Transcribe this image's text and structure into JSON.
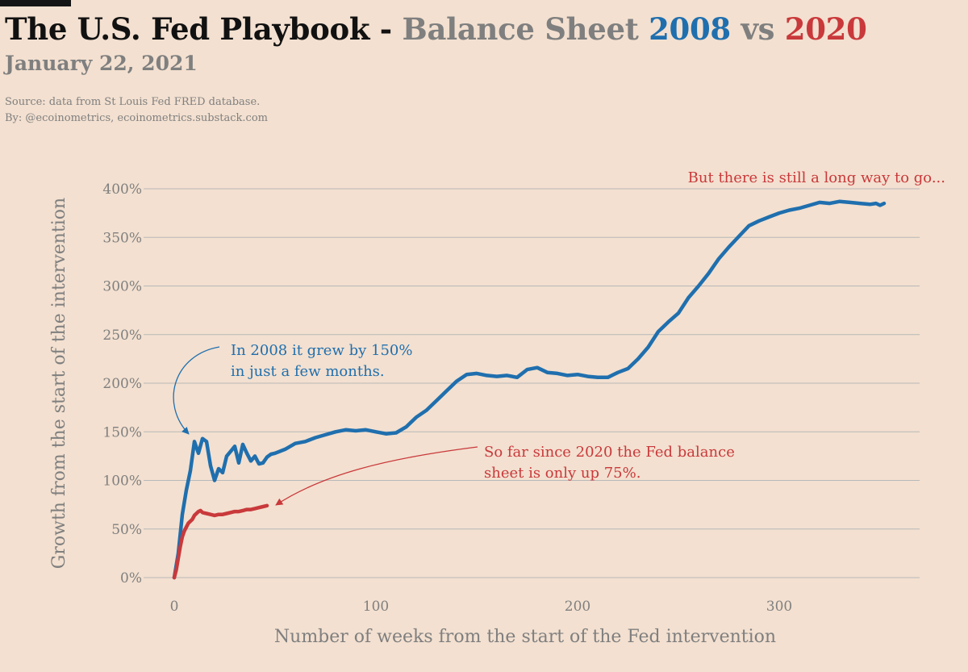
{
  "header": {
    "title_main": "The U.S. Fed Playbook -",
    "title_sub": "Balance Sheet",
    "title_2008": "2008",
    "title_vs": "vs",
    "title_2020": "2020",
    "date": "January 22, 2021",
    "source_line": "Source: data from  St Louis Fed FRED database.",
    "by_line": "By: @ecoinometrics, ecoinometrics.substack.com"
  },
  "colors": {
    "background": "#f3e0d0",
    "series_2008": "#1f6fae",
    "series_2020": "#c9393b",
    "gridline": "#b8b8b8",
    "muted_text": "#7f7f7f"
  },
  "chart_data": {
    "type": "line",
    "title": "",
    "xlabel": "Number of weeks from the start of the Fed intervention",
    "ylabel": "Growth from the start of the intervention",
    "xlim": [
      -15,
      375
    ],
    "ylim": [
      -4,
      412
    ],
    "x_ticks": [
      0,
      100,
      200,
      300
    ],
    "x_tick_labels": [
      "0",
      "100",
      "200",
      "300"
    ],
    "y_ticks": [
      0,
      50,
      100,
      150,
      200,
      250,
      300,
      350,
      400
    ],
    "y_tick_labels": [
      "0%",
      "50%",
      "100%",
      "150%",
      "200%",
      "250%",
      "300%",
      "350%",
      "400%"
    ],
    "grid": "horizontal",
    "series": [
      {
        "name": "2008",
        "color": "#1f6fae",
        "x": [
          0,
          2,
          4,
          6,
          8,
          10,
          12,
          14,
          16,
          18,
          20,
          22,
          24,
          26,
          28,
          30,
          32,
          34,
          36,
          38,
          40,
          42,
          44,
          46,
          48,
          50,
          55,
          60,
          65,
          70,
          75,
          80,
          85,
          90,
          95,
          100,
          105,
          110,
          115,
          120,
          125,
          130,
          135,
          140,
          145,
          150,
          155,
          160,
          165,
          170,
          175,
          180,
          185,
          190,
          195,
          200,
          205,
          210,
          215,
          220,
          225,
          230,
          235,
          240,
          245,
          250,
          255,
          260,
          265,
          270,
          275,
          280,
          285,
          290,
          295,
          300,
          305,
          310,
          315,
          320,
          325,
          330,
          335,
          340,
          345,
          348,
          350,
          352
        ],
        "y": [
          0,
          25,
          65,
          90,
          110,
          140,
          128,
          143,
          140,
          115,
          100,
          112,
          108,
          125,
          130,
          135,
          118,
          137,
          128,
          120,
          125,
          117,
          118,
          124,
          127,
          128,
          132,
          138,
          140,
          144,
          147,
          150,
          152,
          151,
          152,
          150,
          148,
          149,
          155,
          165,
          172,
          182,
          192,
          202,
          209,
          210,
          208,
          207,
          208,
          206,
          214,
          216,
          211,
          210,
          208,
          209,
          207,
          206,
          206,
          211,
          215,
          225,
          237,
          253,
          263,
          272,
          288,
          300,
          313,
          328,
          340,
          351,
          362,
          367,
          371,
          375,
          378,
          380,
          383,
          386,
          385,
          387,
          386,
          385,
          384,
          385,
          383,
          385
        ]
      },
      {
        "name": "2020",
        "color": "#c9393b",
        "x": [
          0,
          1,
          2,
          3,
          4,
          5,
          6,
          7,
          8,
          9,
          10,
          11,
          12,
          13,
          14,
          16,
          18,
          20,
          22,
          24,
          26,
          28,
          30,
          32,
          34,
          36,
          38,
          40,
          42,
          44,
          46
        ],
        "y": [
          0,
          8,
          20,
          32,
          42,
          48,
          52,
          56,
          58,
          60,
          64,
          66,
          68,
          69,
          67,
          66,
          65,
          64,
          65,
          65,
          66,
          67,
          68,
          68,
          69,
          70,
          70,
          71,
          72,
          73,
          74
        ]
      }
    ],
    "annotations": [
      {
        "text_lines": [
          "In 2008 it grew by 150%",
          "in just a few months."
        ],
        "color": "#1f6fae"
      },
      {
        "text_lines": [
          "So far since 2020 the Fed balance",
          "sheet is only up 75%."
        ],
        "color": "#c9393b"
      },
      {
        "text_lines": [
          "But there is still a long way to go..."
        ],
        "color": "#c9393b"
      }
    ]
  }
}
